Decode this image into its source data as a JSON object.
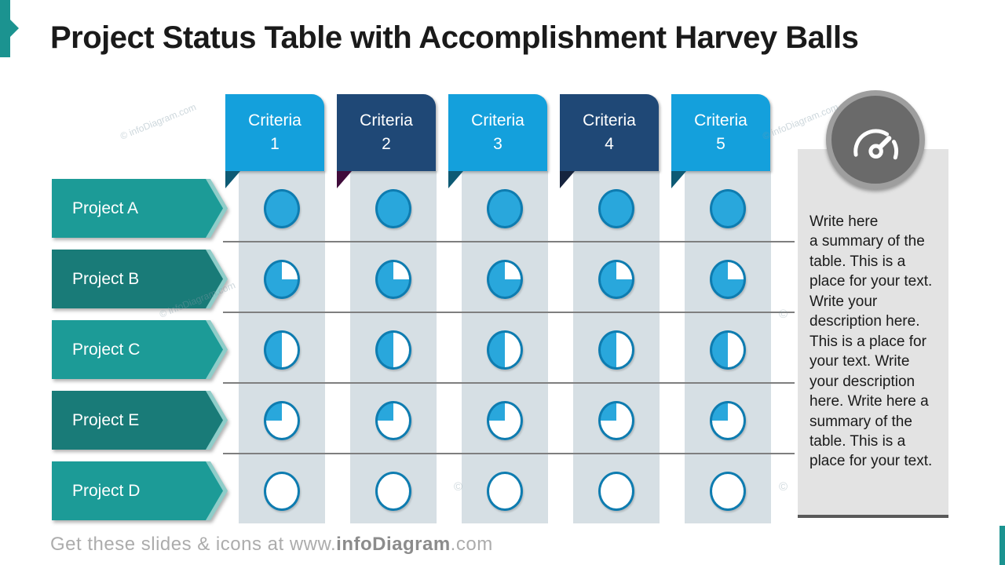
{
  "slide": {
    "title": "Project Status Table with Accomplishment Harvey Balls",
    "footer": {
      "prefix": "Get these slides & icons at www.",
      "brand": "infoDiagram",
      "suffix": ".com"
    },
    "watermark_text": "© infoDiagram.com",
    "watermark_symbol": "©",
    "accent_color": "#1B9390"
  },
  "table": {
    "columns": [
      {
        "line1": "Criteria",
        "line2": "1",
        "header_color": "#14A0DC",
        "fold_color": "#0D5A74"
      },
      {
        "line1": "Criteria",
        "line2": "2",
        "header_color": "#1F4876",
        "fold_color": "#400C3B"
      },
      {
        "line1": "Criteria",
        "line2": "3",
        "header_color": "#14A0DC",
        "fold_color": "#0D5A74"
      },
      {
        "line1": "Criteria",
        "line2": "4",
        "header_color": "#1F4876",
        "fold_color": "#16243E"
      },
      {
        "line1": "Criteria",
        "line2": "5",
        "header_color": "#14A0DC",
        "fold_color": "#0D5A74"
      }
    ],
    "rows": [
      {
        "label": "Project A",
        "color": "#1C9B97",
        "edge_color": "#8FCDC9",
        "fill_percent": 100
      },
      {
        "label": "Project B",
        "color": "#197B78",
        "edge_color": "#8FCDC9",
        "fill_percent": 75
      },
      {
        "label": "Project C",
        "color": "#1C9B97",
        "edge_color": "#8FCDC9",
        "fill_percent": 50
      },
      {
        "label": "Project E",
        "color": "#197B78",
        "edge_color": "#8FCDC9",
        "fill_percent": 25
      },
      {
        "label": "Project D",
        "color": "#1C9B97",
        "edge_color": "#8FCDC9",
        "fill_percent": 0
      }
    ],
    "cell_bg": "#D6DFE4",
    "separator_color": "#7F7F7F",
    "harvey_ball": {
      "fill_color": "#29A7DC",
      "empty_color": "#FFFFFF",
      "border_color": "#0E7CB0"
    }
  },
  "summary": {
    "icon": "gauge-icon",
    "panel_color": "#E3E3E3",
    "icon_circle_color": "#6A6A6A",
    "icon_ring_color": "#9E9E9E",
    "text": "Write here\na summary of the table. This is a place for your text. Write your description here. This is a place for your text. Write your description here. Write here a summary of the table. This is a place for your text."
  }
}
